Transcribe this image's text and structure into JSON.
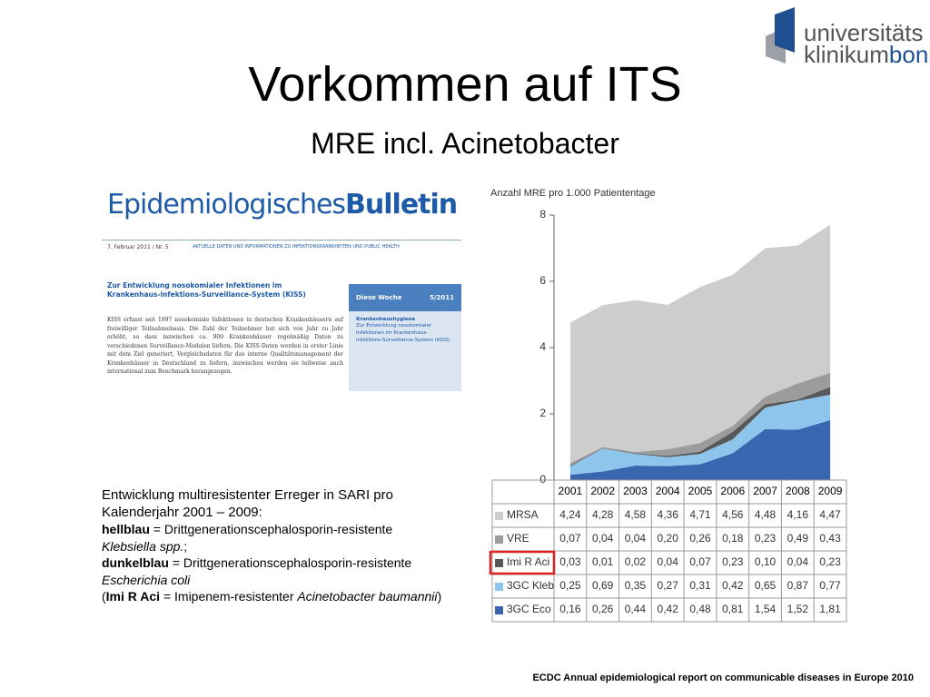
{
  "header": {
    "title": "Vorkommen auf ITS",
    "subtitle": "MRE incl. Acinetobacter"
  },
  "logo": {
    "line1": "universitäts",
    "line2a": "klinikum",
    "line2b": "bonn"
  },
  "bulletin": {
    "title_light": "Epidemiologisches",
    "title_bold": "Bulletin",
    "issue": "7. Februar 2011 / Nr. 5",
    "tagline": "AKTUELLE DATEN UND INFORMATIONEN ZU INFEKTIONSKRANKHEITEN UND PUBLIC HEALTH",
    "article_title": "Zur Entwicklung nosokomialer Infektionen im Krankenhaus-infektions-Surveillance-System (KISS)",
    "article_body": "KISS erfasst seit 1997 nosokomiale Infektionen in deutschen Krankenhäusern auf freiwilliger Teilnahmebasis. Die Zahl der Teilnehmer hat sich von Jahr zu Jahr erhöht, so dass inzwischen ca. 900 Krankenhäuser regelmäßig Daten zu verschiedenen Surveillance-Modulen liefern. Die KISS-Daten werden in erster Linie mit dem Ziel generiert, Vergleichsdaten für das interne Qualitätsmanagement der Krankenhäuser in Deutschland zu liefern, inzwischen werden sie teilweise auch international zum Benchmark herangezogen.",
    "box_label": "Diese Woche",
    "box_issue": "5/2011",
    "box_topic": "Krankenhaushygiene",
    "box_text": "Zur Entwicklung nosokomialer Infektionen im Krankenhaus-infektions-Surveillance-System (KISS)"
  },
  "caption": {
    "intro": "Entwicklung multiresistenter Erreger in SARI pro Kalenderjahr 2001 – 2009:",
    "k1": "hellblau",
    "t1": " = Drittgenerationscephalosporin-resistente ",
    "i1": "Klebsiella spp.",
    "e1": ";",
    "k2": "dunkelblau",
    "t2": " = Drittgenerationscephalosporin-resistente ",
    "i2": "Escherichia coli",
    "p3": "(",
    "k3": "Imi R Aci",
    "t3": " = Imipenem-resistenter ",
    "i3": "Acinetobacter baumannii",
    "e3": ")"
  },
  "footer": "ECDC Annual epidemiological report on communicable diseases in Europe 2010",
  "chart_data": {
    "type": "stacked_area",
    "y_label": "Anzahl MRE pro 1.000 Patiententage",
    "categories": [
      "2001",
      "2002",
      "2003",
      "2004",
      "2005",
      "2006",
      "2007",
      "2008",
      "2009"
    ],
    "ylim": [
      0,
      8
    ],
    "yticks": [
      0,
      2,
      4,
      6,
      8
    ],
    "series": [
      {
        "name": "3GC Eco",
        "color": "#3a66b0",
        "values": [
          0.16,
          0.26,
          0.44,
          0.42,
          0.48,
          0.81,
          1.54,
          1.52,
          1.81
        ],
        "value_labels": [
          "0,16",
          "0,26",
          "0,44",
          "0,42",
          "0,48",
          "0,81",
          "1,54",
          "1,52",
          "1,81"
        ]
      },
      {
        "name": "3GC Kleb",
        "color": "#8ec5ec",
        "values": [
          0.25,
          0.69,
          0.35,
          0.27,
          0.31,
          0.42,
          0.65,
          0.87,
          0.77
        ],
        "value_labels": [
          "0,25",
          "0,69",
          "0,35",
          "0,27",
          "0,31",
          "0,42",
          "0,65",
          "0,87",
          "0,77"
        ]
      },
      {
        "name": "Imi R Aci",
        "color": "#585858",
        "values": [
          0.03,
          0.01,
          0.02,
          0.04,
          0.07,
          0.23,
          0.1,
          0.04,
          0.23
        ],
        "value_labels": [
          "0,03",
          "0,01",
          "0,02",
          "0,04",
          "0,07",
          "0,23",
          "0,10",
          "0,04",
          "0,23"
        ]
      },
      {
        "name": "VRE",
        "color": "#9c9c9c",
        "values": [
          0.07,
          0.04,
          0.04,
          0.2,
          0.26,
          0.18,
          0.23,
          0.49,
          0.43
        ],
        "value_labels": [
          "0,07",
          "0,04",
          "0,04",
          "0,20",
          "0,26",
          "0,18",
          "0,23",
          "0,49",
          "0,43"
        ]
      },
      {
        "name": "MRSA",
        "color": "#cdcdcd",
        "values": [
          4.24,
          4.28,
          4.58,
          4.36,
          4.71,
          4.56,
          4.48,
          4.16,
          4.47
        ],
        "value_labels": [
          "4,24",
          "4,28",
          "4,58",
          "4,36",
          "4,71",
          "4,56",
          "4,48",
          "4,16",
          "4,47"
        ]
      }
    ],
    "highlight": "Imi R Aci"
  }
}
